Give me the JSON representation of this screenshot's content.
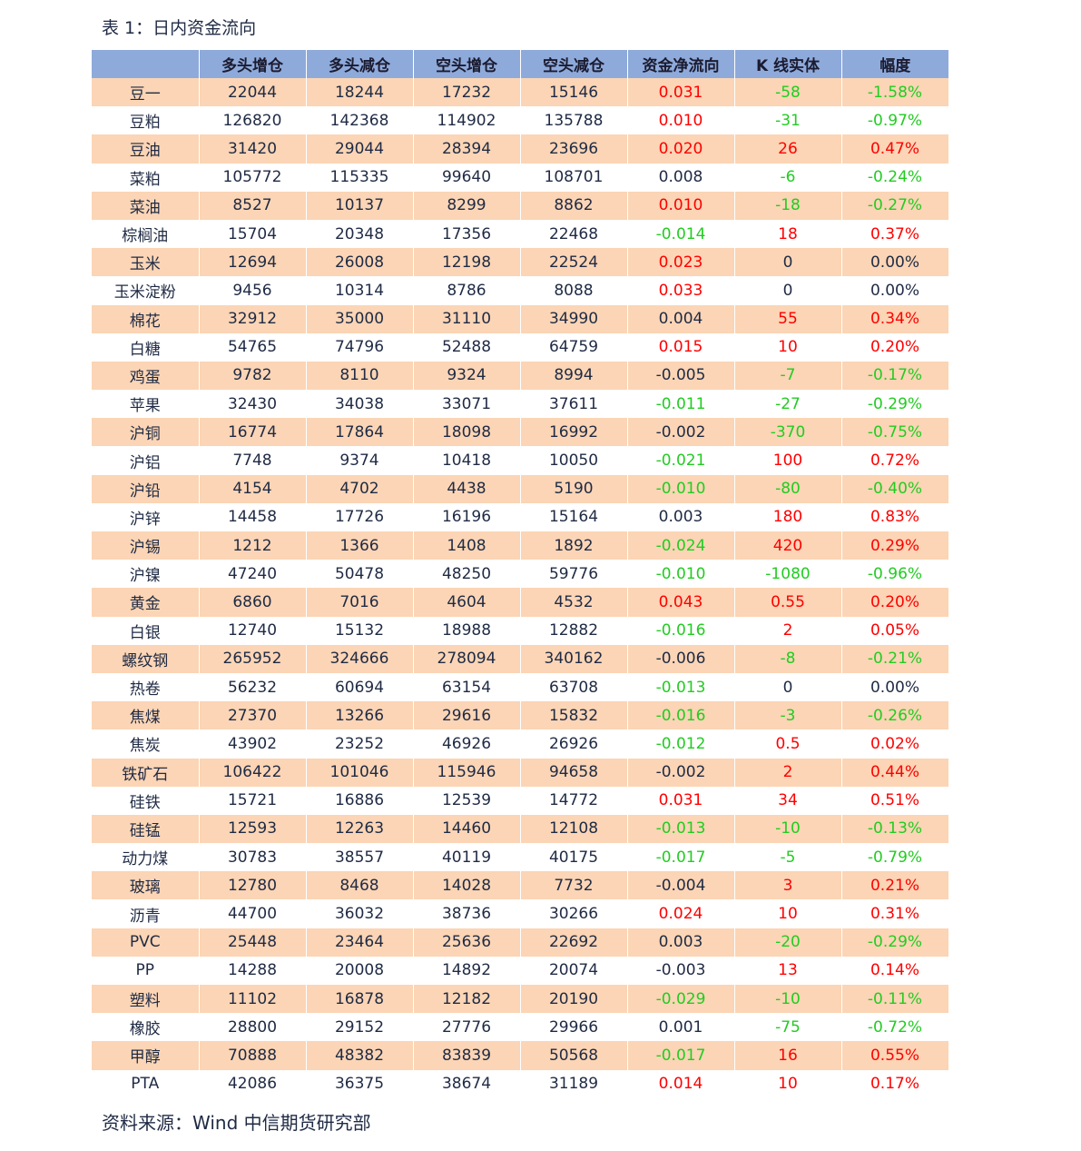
{
  "caption": "表 1：日内资金流向",
  "source": "资料来源：Wind  中信期货研究部",
  "headers": [
    "",
    "多头增仓",
    "多头减仓",
    "空头增仓",
    "空头减仓",
    "资金净流向",
    "K 线实体",
    "幅度"
  ],
  "colors": {
    "up": "#ff0000",
    "down": "#22cc22",
    "neutral": "#1f2a44",
    "header": "#8eaadb",
    "stripe": "#fbd5b5"
  },
  "rows": [
    {
      "name": "豆一",
      "long_add": "22044",
      "long_cut": "18244",
      "short_add": "17232",
      "short_cut": "15146",
      "net": "0.031",
      "net_c": "red",
      "k": "-58",
      "k_c": "green",
      "pct": "-1.58%",
      "pct_c": "green"
    },
    {
      "name": "豆粕",
      "long_add": "126820",
      "long_cut": "142368",
      "short_add": "114902",
      "short_cut": "135788",
      "net": "0.010",
      "net_c": "red",
      "k": "-31",
      "k_c": "green",
      "pct": "-0.97%",
      "pct_c": "green"
    },
    {
      "name": "豆油",
      "long_add": "31420",
      "long_cut": "29044",
      "short_add": "28394",
      "short_cut": "23696",
      "net": "0.020",
      "net_c": "red",
      "k": "26",
      "k_c": "red",
      "pct": "0.47%",
      "pct_c": "red"
    },
    {
      "name": "菜粕",
      "long_add": "105772",
      "long_cut": "115335",
      "short_add": "99640",
      "short_cut": "108701",
      "net": "0.008",
      "net_c": "dark",
      "k": "-6",
      "k_c": "green",
      "pct": "-0.24%",
      "pct_c": "green"
    },
    {
      "name": "菜油",
      "long_add": "8527",
      "long_cut": "10137",
      "short_add": "8299",
      "short_cut": "8862",
      "net": "0.010",
      "net_c": "red",
      "k": "-18",
      "k_c": "green",
      "pct": "-0.27%",
      "pct_c": "green"
    },
    {
      "name": "棕榈油",
      "long_add": "15704",
      "long_cut": "20348",
      "short_add": "17356",
      "short_cut": "22468",
      "net": "-0.014",
      "net_c": "green",
      "k": "18",
      "k_c": "red",
      "pct": "0.37%",
      "pct_c": "red"
    },
    {
      "name": "玉米",
      "long_add": "12694",
      "long_cut": "26008",
      "short_add": "12198",
      "short_cut": "22524",
      "net": "0.023",
      "net_c": "red",
      "k": "0",
      "k_c": "dark",
      "pct": "0.00%",
      "pct_c": "dark"
    },
    {
      "name": "玉米淀粉",
      "long_add": "9456",
      "long_cut": "10314",
      "short_add": "8786",
      "short_cut": "8088",
      "net": "0.033",
      "net_c": "red",
      "k": "0",
      "k_c": "dark",
      "pct": "0.00%",
      "pct_c": "dark"
    },
    {
      "name": "棉花",
      "long_add": "32912",
      "long_cut": "35000",
      "short_add": "31110",
      "short_cut": "34990",
      "net": "0.004",
      "net_c": "dark",
      "k": "55",
      "k_c": "red",
      "pct": "0.34%",
      "pct_c": "red"
    },
    {
      "name": "白糖",
      "long_add": "54765",
      "long_cut": "74796",
      "short_add": "52488",
      "short_cut": "64759",
      "net": "0.015",
      "net_c": "red",
      "k": "10",
      "k_c": "red",
      "pct": "0.20%",
      "pct_c": "red"
    },
    {
      "name": "鸡蛋",
      "long_add": "9782",
      "long_cut": "8110",
      "short_add": "9324",
      "short_cut": "8994",
      "net": "-0.005",
      "net_c": "dark",
      "k": "-7",
      "k_c": "green",
      "pct": "-0.17%",
      "pct_c": "green"
    },
    {
      "name": "苹果",
      "long_add": "32430",
      "long_cut": "34038",
      "short_add": "33071",
      "short_cut": "37611",
      "net": "-0.011",
      "net_c": "green",
      "k": "-27",
      "k_c": "green",
      "pct": "-0.29%",
      "pct_c": "green"
    },
    {
      "name": "沪铜",
      "long_add": "16774",
      "long_cut": "17864",
      "short_add": "18098",
      "short_cut": "16992",
      "net": "-0.002",
      "net_c": "dark",
      "k": "-370",
      "k_c": "green",
      "pct": "-0.75%",
      "pct_c": "green"
    },
    {
      "name": "沪铝",
      "long_add": "7748",
      "long_cut": "9374",
      "short_add": "10418",
      "short_cut": "10050",
      "net": "-0.021",
      "net_c": "green",
      "k": "100",
      "k_c": "red",
      "pct": "0.72%",
      "pct_c": "red"
    },
    {
      "name": "沪铅",
      "long_add": "4154",
      "long_cut": "4702",
      "short_add": "4438",
      "short_cut": "5190",
      "net": "-0.010",
      "net_c": "green",
      "k": "-80",
      "k_c": "green",
      "pct": "-0.40%",
      "pct_c": "green"
    },
    {
      "name": "沪锌",
      "long_add": "14458",
      "long_cut": "17726",
      "short_add": "16196",
      "short_cut": "15164",
      "net": "0.003",
      "net_c": "dark",
      "k": "180",
      "k_c": "red",
      "pct": "0.83%",
      "pct_c": "red"
    },
    {
      "name": "沪锡",
      "long_add": "1212",
      "long_cut": "1366",
      "short_add": "1408",
      "short_cut": "1892",
      "net": "-0.024",
      "net_c": "green",
      "k": "420",
      "k_c": "red",
      "pct": "0.29%",
      "pct_c": "red"
    },
    {
      "name": "沪镍",
      "long_add": "47240",
      "long_cut": "50478",
      "short_add": "48250",
      "short_cut": "59776",
      "net": "-0.010",
      "net_c": "green",
      "k": "-1080",
      "k_c": "green",
      "pct": "-0.96%",
      "pct_c": "green"
    },
    {
      "name": "黄金",
      "long_add": "6860",
      "long_cut": "7016",
      "short_add": "4604",
      "short_cut": "4532",
      "net": "0.043",
      "net_c": "red",
      "k": "0.55",
      "k_c": "red",
      "pct": "0.20%",
      "pct_c": "red"
    },
    {
      "name": "白银",
      "long_add": "12740",
      "long_cut": "15132",
      "short_add": "18988",
      "short_cut": "12882",
      "net": "-0.016",
      "net_c": "green",
      "k": "2",
      "k_c": "red",
      "pct": "0.05%",
      "pct_c": "red"
    },
    {
      "name": "螺纹钢",
      "long_add": "265952",
      "long_cut": "324666",
      "short_add": "278094",
      "short_cut": "340162",
      "net": "-0.006",
      "net_c": "dark",
      "k": "-8",
      "k_c": "green",
      "pct": "-0.21%",
      "pct_c": "green"
    },
    {
      "name": "热卷",
      "long_add": "56232",
      "long_cut": "60694",
      "short_add": "63154",
      "short_cut": "63708",
      "net": "-0.013",
      "net_c": "green",
      "k": "0",
      "k_c": "dark",
      "pct": "0.00%",
      "pct_c": "dark"
    },
    {
      "name": "焦煤",
      "long_add": "27370",
      "long_cut": "13266",
      "short_add": "29616",
      "short_cut": "15832",
      "net": "-0.016",
      "net_c": "green",
      "k": "-3",
      "k_c": "green",
      "pct": "-0.26%",
      "pct_c": "green"
    },
    {
      "name": "焦炭",
      "long_add": "43902",
      "long_cut": "23252",
      "short_add": "46926",
      "short_cut": "26926",
      "net": "-0.012",
      "net_c": "green",
      "k": "0.5",
      "k_c": "red",
      "pct": "0.02%",
      "pct_c": "red"
    },
    {
      "name": "铁矿石",
      "long_add": "106422",
      "long_cut": "101046",
      "short_add": "115946",
      "short_cut": "94658",
      "net": "-0.002",
      "net_c": "dark",
      "k": "2",
      "k_c": "red",
      "pct": "0.44%",
      "pct_c": "red"
    },
    {
      "name": "硅铁",
      "long_add": "15721",
      "long_cut": "16886",
      "short_add": "12539",
      "short_cut": "14772",
      "net": "0.031",
      "net_c": "red",
      "k": "34",
      "k_c": "red",
      "pct": "0.51%",
      "pct_c": "red"
    },
    {
      "name": "硅锰",
      "long_add": "12593",
      "long_cut": "12263",
      "short_add": "14460",
      "short_cut": "12108",
      "net": "-0.013",
      "net_c": "green",
      "k": "-10",
      "k_c": "green",
      "pct": "-0.13%",
      "pct_c": "green"
    },
    {
      "name": "动力煤",
      "long_add": "30783",
      "long_cut": "38557",
      "short_add": "40119",
      "short_cut": "40175",
      "net": "-0.017",
      "net_c": "green",
      "k": "-5",
      "k_c": "green",
      "pct": "-0.79%",
      "pct_c": "green"
    },
    {
      "name": "玻璃",
      "long_add": "12780",
      "long_cut": "8468",
      "short_add": "14028",
      "short_cut": "7732",
      "net": "-0.004",
      "net_c": "dark",
      "k": "3",
      "k_c": "red",
      "pct": "0.21%",
      "pct_c": "red"
    },
    {
      "name": "沥青",
      "long_add": "44700",
      "long_cut": "36032",
      "short_add": "38736",
      "short_cut": "30266",
      "net": "0.024",
      "net_c": "red",
      "k": "10",
      "k_c": "red",
      "pct": "0.31%",
      "pct_c": "red"
    },
    {
      "name": "PVC",
      "long_add": "25448",
      "long_cut": "23464",
      "short_add": "25636",
      "short_cut": "22692",
      "net": "0.003",
      "net_c": "dark",
      "k": "-20",
      "k_c": "green",
      "pct": "-0.29%",
      "pct_c": "green"
    },
    {
      "name": "PP",
      "long_add": "14288",
      "long_cut": "20008",
      "short_add": "14892",
      "short_cut": "20074",
      "net": "-0.003",
      "net_c": "dark",
      "k": "13",
      "k_c": "red",
      "pct": "0.14%",
      "pct_c": "red"
    },
    {
      "name": "塑料",
      "long_add": "11102",
      "long_cut": "16878",
      "short_add": "12182",
      "short_cut": "20190",
      "net": "-0.029",
      "net_c": "green",
      "k": "-10",
      "k_c": "green",
      "pct": "-0.11%",
      "pct_c": "green"
    },
    {
      "name": "橡胶",
      "long_add": "28800",
      "long_cut": "29152",
      "short_add": "27776",
      "short_cut": "29966",
      "net": "0.001",
      "net_c": "dark",
      "k": "-75",
      "k_c": "green",
      "pct": "-0.72%",
      "pct_c": "green"
    },
    {
      "name": "甲醇",
      "long_add": "70888",
      "long_cut": "48382",
      "short_add": "83839",
      "short_cut": "50568",
      "net": "-0.017",
      "net_c": "green",
      "k": "16",
      "k_c": "red",
      "pct": "0.55%",
      "pct_c": "red"
    },
    {
      "name": "PTA",
      "long_add": "42086",
      "long_cut": "36375",
      "short_add": "38674",
      "short_cut": "31189",
      "net": "0.014",
      "net_c": "red",
      "k": "10",
      "k_c": "red",
      "pct": "0.17%",
      "pct_c": "red"
    }
  ]
}
